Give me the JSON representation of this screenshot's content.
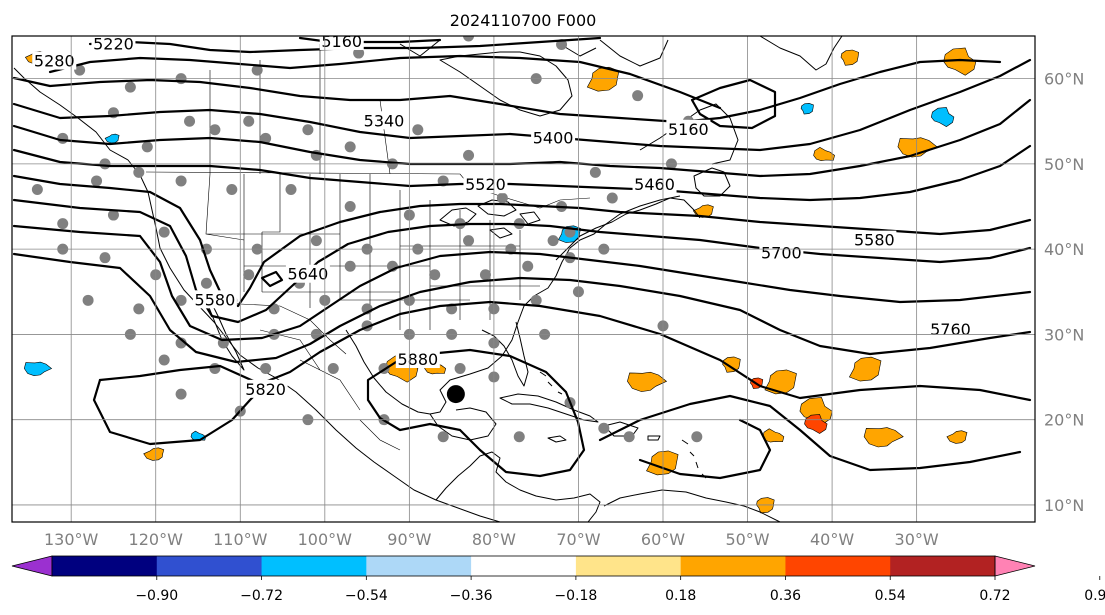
{
  "title": "2024110700 F000",
  "map": {
    "lon_range": [
      -137,
      -16
    ],
    "lat_range": [
      8,
      65
    ],
    "lon_ticks": [
      {
        "value": -130,
        "label": "130°W"
      },
      {
        "value": -120,
        "label": "120°W"
      },
      {
        "value": -110,
        "label": "110°W"
      },
      {
        "value": -100,
        "label": "100°W"
      },
      {
        "value": -90,
        "label": "90°W"
      },
      {
        "value": -80,
        "label": "80°W"
      },
      {
        "value": -70,
        "label": "70°W"
      },
      {
        "value": -60,
        "label": "60°W"
      },
      {
        "value": -50,
        "label": "50°W"
      },
      {
        "value": -40,
        "label": "40°W"
      },
      {
        "value": -30,
        "label": "30°W"
      }
    ],
    "lat_ticks": [
      {
        "value": 10,
        "label": "10°N"
      },
      {
        "value": 20,
        "label": "20°N"
      },
      {
        "value": 30,
        "label": "30°N"
      },
      {
        "value": 40,
        "label": "40°N"
      },
      {
        "value": 50,
        "label": "50°N"
      },
      {
        "value": 60,
        "label": "60°N"
      }
    ],
    "grid": true
  },
  "contour_labels": [
    {
      "text": "5220",
      "lon": -125,
      "lat": 64
    },
    {
      "text": "5160",
      "lon": -98,
      "lat": 64.3
    },
    {
      "text": "5280",
      "lon": -132,
      "lat": 62
    },
    {
      "text": "5340",
      "lon": -93,
      "lat": 55
    },
    {
      "text": "5400",
      "lon": -73,
      "lat": 53
    },
    {
      "text": "5160",
      "lon": -57,
      "lat": 54
    },
    {
      "text": "5460",
      "lon": -61,
      "lat": 47.5
    },
    {
      "text": "5520",
      "lon": -81,
      "lat": 47.5
    },
    {
      "text": "5580",
      "lon": -113,
      "lat": 34
    },
    {
      "text": "5640",
      "lon": -102,
      "lat": 37
    },
    {
      "text": "5580",
      "lon": -35,
      "lat": 41
    },
    {
      "text": "5700",
      "lon": -46,
      "lat": 39.5
    },
    {
      "text": "5760",
      "lon": -26,
      "lat": 30.5
    },
    {
      "text": "5820",
      "lon": -107,
      "lat": 23.5
    },
    {
      "text": "5880",
      "lon": -89,
      "lat": 27
    }
  ],
  "colorbar": {
    "ticks": [
      "−0.90",
      "−0.72",
      "−0.54",
      "−0.36",
      "−0.18",
      "0.18",
      "0.36",
      "0.54",
      "0.72",
      "0.90"
    ],
    "colors": [
      "#9b30d0",
      "#00007f",
      "#3050d0",
      "#00bfff",
      "#add8f7",
      "#ffffff",
      "#ffe48a",
      "#ffa500",
      "#ff4500",
      "#b22222",
      "#ff82b4"
    ]
  },
  "stations": [
    [
      -134,
      62
    ],
    [
      -129,
      61
    ],
    [
      -123,
      59
    ],
    [
      -117,
      60
    ],
    [
      -108,
      61
    ],
    [
      -96,
      63
    ],
    [
      -83,
      65
    ],
    [
      -72,
      64
    ],
    [
      -75,
      60
    ],
    [
      -63,
      58
    ],
    [
      -57,
      55
    ],
    [
      -131,
      53
    ],
    [
      -125,
      56
    ],
    [
      -116,
      55
    ],
    [
      -109,
      55
    ],
    [
      -102,
      54
    ],
    [
      -97,
      52
    ],
    [
      -89,
      54
    ],
    [
      -83,
      51
    ],
    [
      -68,
      49
    ],
    [
      -59,
      50
    ],
    [
      -126,
      50
    ],
    [
      -121,
      52
    ],
    [
      -113,
      54
    ],
    [
      -107,
      53
    ],
    [
      -101,
      51
    ],
    [
      -92,
      50
    ],
    [
      -86,
      48
    ],
    [
      -79,
      46
    ],
    [
      -72,
      45
    ],
    [
      -66,
      46
    ],
    [
      -134,
      47
    ],
    [
      -127,
      48
    ],
    [
      -122,
      49
    ],
    [
      -117,
      48
    ],
    [
      -111,
      47
    ],
    [
      -104,
      47
    ],
    [
      -97,
      45
    ],
    [
      -90,
      44
    ],
    [
      -84,
      43
    ],
    [
      -77,
      43
    ],
    [
      -71,
      42
    ],
    [
      -131,
      43
    ],
    [
      -125,
      44
    ],
    [
      -119,
      42
    ],
    [
      -114,
      40
    ],
    [
      -108,
      40
    ],
    [
      -101,
      41
    ],
    [
      -95,
      40
    ],
    [
      -89,
      40
    ],
    [
      -83,
      41
    ],
    [
      -78,
      40
    ],
    [
      -73,
      41
    ],
    [
      -67,
      40
    ],
    [
      -131,
      40
    ],
    [
      -126,
      39
    ],
    [
      -120,
      37
    ],
    [
      -114,
      36
    ],
    [
      -109,
      37
    ],
    [
      -103,
      36
    ],
    [
      -97,
      38
    ],
    [
      -92,
      38
    ],
    [
      -87,
      37
    ],
    [
      -81,
      37
    ],
    [
      -76,
      38
    ],
    [
      -71,
      39
    ],
    [
      -128,
      34
    ],
    [
      -122,
      33
    ],
    [
      -117,
      34
    ],
    [
      -111,
      34
    ],
    [
      -106,
      33
    ],
    [
      -100,
      34
    ],
    [
      -95,
      33
    ],
    [
      -90,
      34
    ],
    [
      -85,
      33
    ],
    [
      -80,
      33
    ],
    [
      -75,
      34
    ],
    [
      -70,
      35
    ],
    [
      -123,
      30
    ],
    [
      -117,
      29
    ],
    [
      -112,
      29
    ],
    [
      -106,
      30
    ],
    [
      -101,
      30
    ],
    [
      -95,
      31
    ],
    [
      -90,
      30
    ],
    [
      -85,
      30
    ],
    [
      -80,
      29
    ],
    [
      -74,
      30
    ],
    [
      -119,
      27
    ],
    [
      -113,
      26
    ],
    [
      -107,
      26
    ],
    [
      -99,
      26
    ],
    [
      -93,
      26
    ],
    [
      -84,
      26
    ],
    [
      -80,
      25
    ],
    [
      -71,
      22
    ],
    [
      -67,
      19
    ],
    [
      -60,
      31
    ],
    [
      -117,
      23
    ],
    [
      -110,
      21
    ],
    [
      -102,
      20
    ],
    [
      -93,
      20
    ],
    [
      -86,
      18
    ],
    [
      -77,
      18
    ],
    [
      -64,
      18
    ],
    [
      -56,
      18
    ]
  ],
  "highlight_station": {
    "lon": -84.5,
    "lat": 23
  },
  "anomaly_patches": [
    {
      "lon": -125,
      "lat": 53,
      "level": "-0.36"
    },
    {
      "lon": -71,
      "lat": 41.8,
      "level": "-0.36"
    },
    {
      "lon": -43,
      "lat": 56.5,
      "level": "-0.36"
    },
    {
      "lon": -27,
      "lat": 55.5,
      "level": "-0.36"
    },
    {
      "lon": -115,
      "lat": 18,
      "level": "-0.36"
    },
    {
      "lon": -134,
      "lat": 26,
      "level": "-0.36"
    },
    {
      "lon": -134,
      "lat": 62.5,
      "level": "0.54"
    },
    {
      "lon": -67,
      "lat": 60,
      "level": "0.54"
    },
    {
      "lon": -38,
      "lat": 62.5,
      "level": "0.54"
    },
    {
      "lon": -25,
      "lat": 62,
      "level": "0.54"
    },
    {
      "lon": -41,
      "lat": 51,
      "level": "0.54"
    },
    {
      "lon": -30,
      "lat": 52,
      "level": "0.54"
    },
    {
      "lon": -55,
      "lat": 44.5,
      "level": "0.54"
    },
    {
      "lon": -46,
      "lat": 24.5,
      "level": "0.54"
    },
    {
      "lon": -52,
      "lat": 26.5,
      "level": "0.54"
    },
    {
      "lon": -42,
      "lat": 21,
      "level": "0.54"
    },
    {
      "lon": -47,
      "lat": 18,
      "level": "0.54"
    },
    {
      "lon": -34,
      "lat": 18,
      "level": "0.54"
    },
    {
      "lon": -25,
      "lat": 18,
      "level": "0.54"
    },
    {
      "lon": -60,
      "lat": 15,
      "level": "0.54"
    },
    {
      "lon": -48,
      "lat": 10,
      "level": "0.54"
    },
    {
      "lon": -91,
      "lat": 26,
      "level": "0.54"
    },
    {
      "lon": -87,
      "lat": 26,
      "level": "0.54"
    },
    {
      "lon": -62,
      "lat": 24.5,
      "level": "0.54"
    },
    {
      "lon": -120,
      "lat": 16,
      "level": "0.54"
    },
    {
      "lon": -36,
      "lat": 26,
      "level": "0.54"
    },
    {
      "lon": -49,
      "lat": 24.3,
      "level": "0.72"
    },
    {
      "lon": -42,
      "lat": 19.5,
      "level": "0.72"
    }
  ]
}
